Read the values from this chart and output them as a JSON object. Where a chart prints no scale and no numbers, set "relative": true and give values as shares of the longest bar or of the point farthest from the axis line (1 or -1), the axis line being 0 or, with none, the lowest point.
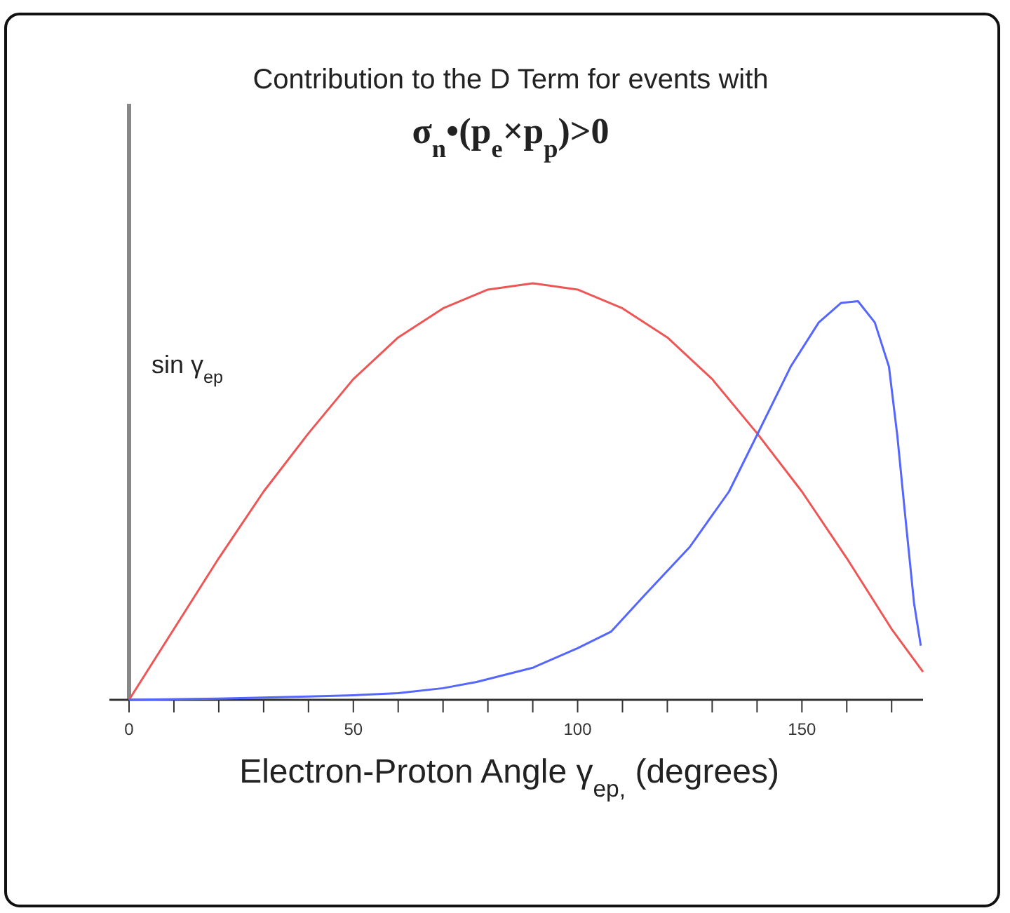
{
  "chart_data": {
    "type": "line",
    "title": "Contribution to the D Term for events with",
    "subtitle": "σ$_{n}$•(p$_{e}$×p$_{p}$)>0",
    "xlabel": "Electron-Proton Angle γ$_{ep,}$ (degrees)",
    "relative": true,
    "tick_labels": "x",
    "xlim": [
      0,
      177
    ],
    "xticks": [
      0,
      {
        "value": 10,
        "label": null
      },
      {
        "value": 20,
        "label": null
      },
      {
        "value": 30,
        "label": null
      },
      {
        "value": 40,
        "label": null
      },
      50,
      {
        "value": 60,
        "label": null
      },
      {
        "value": 70,
        "label": null
      },
      {
        "value": 80,
        "label": null
      },
      {
        "value": 90,
        "label": null
      },
      100,
      {
        "value": 110,
        "label": null
      },
      {
        "value": 120,
        "label": null
      },
      {
        "value": 130,
        "label": null
      },
      {
        "value": 140,
        "label": null
      },
      150,
      {
        "value": 160,
        "label": null
      },
      {
        "value": 170,
        "label": null
      }
    ],
    "series": [
      {
        "name": "sin γ$_{ep}$",
        "color": "#ee5555",
        "x": [
          0,
          10,
          20,
          30,
          40,
          50,
          60,
          70,
          80,
          90,
          100,
          110,
          120,
          130,
          140,
          150,
          160,
          170,
          177
        ],
        "values": [
          0,
          0.17,
          0.34,
          0.5,
          0.64,
          0.77,
          0.87,
          0.94,
          0.985,
          1,
          0.985,
          0.94,
          0.87,
          0.77,
          0.64,
          0.5,
          0.34,
          0.17,
          0.067
        ]
      },
      {
        "color": "#5566ff",
        "x": [
          0,
          20,
          40,
          50,
          60,
          70,
          77.5,
          90,
          100,
          107.5,
          115,
          125,
          133.75,
          140,
          147.5,
          153.75,
          158.75,
          162.5,
          166.25,
          169.4,
          171.25,
          173.1,
          175,
          176.5
        ],
        "values": [
          0,
          0.003,
          0.008,
          0.011,
          0.016,
          0.028,
          0.043,
          0.077,
          0.124,
          0.164,
          0.252,
          0.367,
          0.5,
          0.636,
          0.8,
          0.906,
          0.953,
          0.957,
          0.906,
          0.8,
          0.636,
          0.434,
          0.232,
          0.13
        ]
      }
    ]
  }
}
